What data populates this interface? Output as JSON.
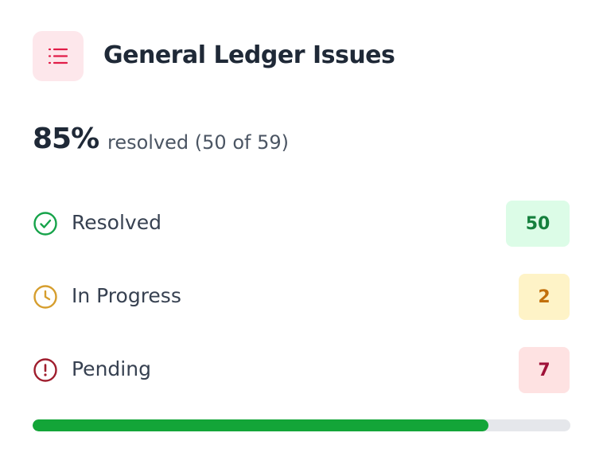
{
  "header": {
    "title": "General Ledger Issues"
  },
  "summary": {
    "percent": "85%",
    "text": "resolved (50 of 59)"
  },
  "statuses": [
    {
      "label": "Resolved",
      "count": 50
    },
    {
      "label": "In Progress",
      "count": 2
    },
    {
      "label": "Pending",
      "count": 7
    }
  ]
}
